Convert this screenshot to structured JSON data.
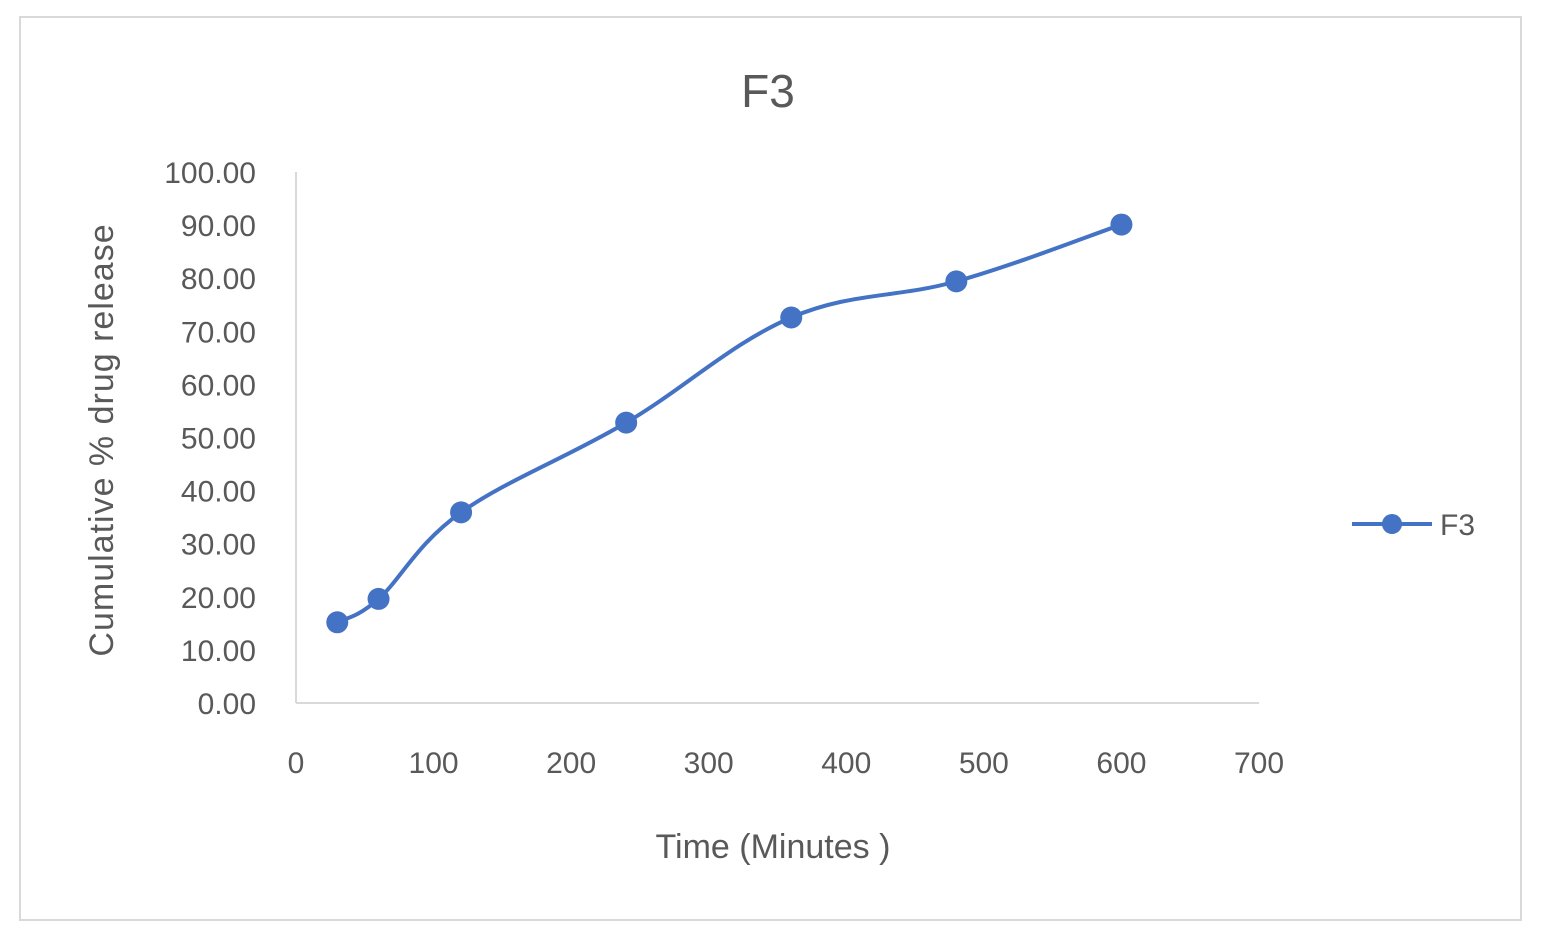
{
  "chart_data": {
    "type": "line",
    "title": "F3",
    "xlabel": "Time (Minutes )",
    "ylabel": "Cumulative % drug release",
    "x": [
      30,
      60,
      120,
      240,
      360,
      480,
      600
    ],
    "series": [
      {
        "name": "F3",
        "values": [
          15.2,
          19.6,
          35.9,
          52.8,
          72.6,
          79.4,
          90.1
        ],
        "color": "#4472c4"
      }
    ],
    "xlim": [
      0,
      700
    ],
    "ylim": [
      0,
      100
    ],
    "x_ticks": [
      "0",
      "100",
      "200",
      "300",
      "400",
      "500",
      "600",
      "700"
    ],
    "y_ticks": [
      "0.00",
      "10.00",
      "20.00",
      "30.00",
      "40.00",
      "50.00",
      "60.00",
      "70.00",
      "80.00",
      "90.00",
      "100.00"
    ],
    "grid": false,
    "legend": "right",
    "marker": "circle"
  },
  "colors": {
    "series": "#4472c4",
    "axis": "#d9d9d9",
    "text": "#595959",
    "title": "#595959",
    "border": "#d9d9d9"
  }
}
